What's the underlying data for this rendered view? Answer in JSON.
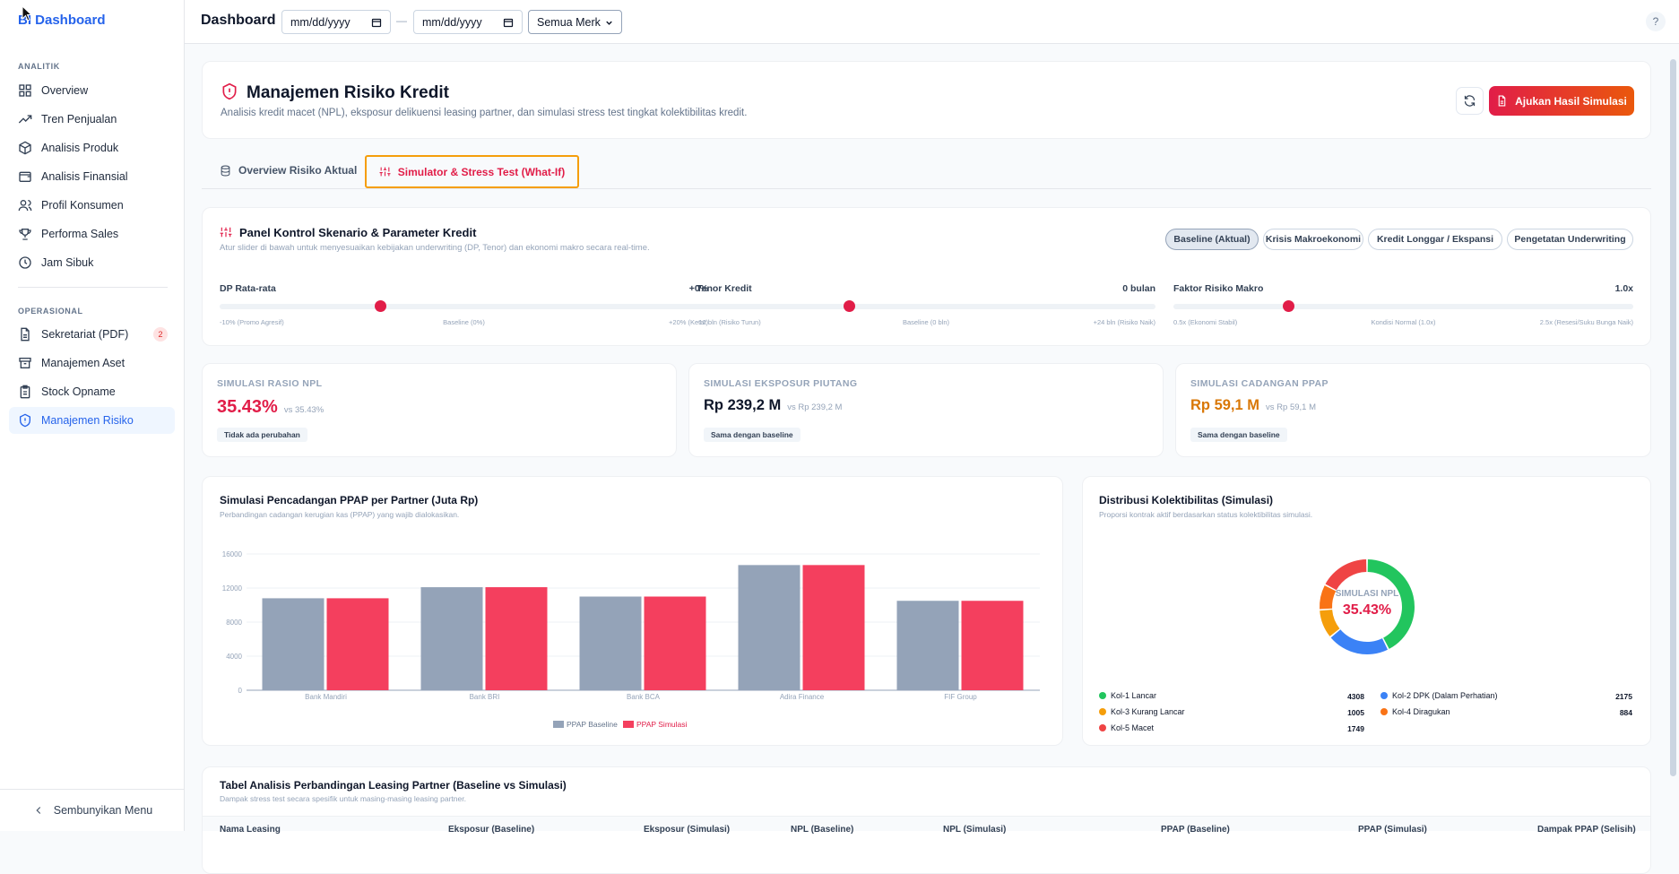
{
  "app": {
    "brand": "BI Dashboard"
  },
  "sidebar": {
    "analytics_label": "ANALITIK",
    "ops_label": "OPERASIONAL",
    "analytics": [
      {
        "label": "Overview",
        "icon": "grid-icon"
      },
      {
        "label": "Tren Penjualan",
        "icon": "trend-icon"
      },
      {
        "label": "Analisis Produk",
        "icon": "box-icon"
      },
      {
        "label": "Analisis Finansial",
        "icon": "wallet-icon"
      },
      {
        "label": "Profil Konsumen",
        "icon": "users-icon"
      },
      {
        "label": "Performa Sales",
        "icon": "trophy-icon"
      },
      {
        "label": "Jam Sibuk",
        "icon": "clock-icon"
      }
    ],
    "ops": [
      {
        "label": "Sekretariat (PDF)",
        "icon": "file-icon",
        "badge": "2"
      },
      {
        "label": "Manajemen Aset",
        "icon": "archive-icon"
      },
      {
        "label": "Stock Opname",
        "icon": "clipboard-icon"
      },
      {
        "label": "Manajemen Risiko",
        "icon": "shield-icon",
        "active": true
      }
    ],
    "collapse_label": "Sembunyikan Menu"
  },
  "topbar": {
    "title": "Dashboard",
    "date_from_placeholder": "mm/dd/yyyy",
    "date_to_placeholder": "mm/dd/yyyy",
    "separator": "—",
    "brand_select": "Semua Merk",
    "help": "?"
  },
  "header": {
    "title": "Manajemen Risiko Kredit",
    "subtitle": "Analisis kredit macet (NPL), eksposur delikuensi leasing partner, dan simulasi stress test tingkat kolektibilitas kredit.",
    "submit_label": "Ajukan Hasil Simulasi"
  },
  "tabs": [
    {
      "label": "Overview Risiko Aktual",
      "active": false
    },
    {
      "label": "Simulator & Stress Test (What-If)",
      "active": true
    }
  ],
  "panel": {
    "title": "Panel Kontrol Skenario & Parameter Kredit",
    "subtitle": "Atur slider di bawah untuk menyesuaikan kebijakan underwriting (DP, Tenor) dan ekonomi makro secara real-time.",
    "scenarios": [
      "Baseline (Aktual)",
      "Krisis Makroekonomi",
      "Kredit Longgar / Ekspansi",
      "Pengetatan Underwriting"
    ],
    "sliders": [
      {
        "label": "DP Rata-rata",
        "value": "+0%",
        "position": 0.33,
        "ticks": [
          "-10% (Promo Agresif)",
          "Baseline (0%)",
          "+20% (Ketat)"
        ]
      },
      {
        "label": "Tenor Kredit",
        "value": "0 bulan",
        "position": 0.333,
        "ticks": [
          "-12 bln (Risiko Turun)",
          "Baseline (0 bln)",
          "+24 bln (Risiko Naik)"
        ]
      },
      {
        "label": "Faktor Risiko Makro",
        "value": "1.0x",
        "position": 0.25,
        "ticks": [
          "0.5x (Ekonomi Stabil)",
          "Kondisi Normal (1.0x)",
          "2.5x (Resesi/Suku Bunga Naik)"
        ]
      }
    ]
  },
  "kpis": [
    {
      "label": "SIMULASI RASIO NPL",
      "value": "35.43%",
      "vs": "vs 35.43%",
      "pill": "Tidak ada perubahan",
      "color": "#e11d48"
    },
    {
      "label": "SIMULASI EKSPOSUR PIUTANG",
      "value": "Rp 239,2 M",
      "vs": "vs Rp 239,2 M",
      "pill": "Sama dengan baseline",
      "color": "#0f172a"
    },
    {
      "label": "SIMULASI CADANGAN PPAP",
      "value": "Rp 59,1 M",
      "vs": "vs Rp 59,1 M",
      "pill": "Sama dengan baseline",
      "color": "#d97706"
    }
  ],
  "bar_chart": {
    "title": "Simulasi Pencadangan PPAP per Partner (Juta Rp)",
    "subtitle": "Perbandingan cadangan kerugian kas (PPAP) yang wajib dialokasikan."
  },
  "chart_data": {
    "type": "bar",
    "categories": [
      "Bank Mandiri",
      "Bank BRI",
      "Bank BCA",
      "Adira Finance",
      "FIF Group"
    ],
    "series": [
      {
        "name": "PPAP Baseline",
        "values": [
          10800,
          12100,
          11000,
          14700,
          10500
        ],
        "color": "#94a3b8"
      },
      {
        "name": "PPAP Simulasi",
        "values": [
          10800,
          12100,
          11000,
          14700,
          10500
        ],
        "color": "#f43f5e"
      }
    ],
    "yticks": [
      0,
      4000,
      8000,
      12000,
      16000
    ],
    "ylim": [
      0,
      16000
    ]
  },
  "donut": {
    "title": "Distribusi Kolektibilitas (Simulasi)",
    "subtitle": "Proporsi kontrak aktif berdasarkan status kolektibilitas simulasi.",
    "center_label": "SIMULASI NPL",
    "center_value": "35.43%",
    "segments": [
      {
        "name": "Kol-1 Lancar",
        "value": 4308,
        "color": "#22c55e"
      },
      {
        "name": "Kol-2 DPK (Dalam Perhatian)",
        "value": 2175,
        "color": "#3b82f6"
      },
      {
        "name": "Kol-3 Kurang Lancar",
        "value": 1005,
        "color": "#f59e0b"
      },
      {
        "name": "Kol-4 Diragukan",
        "value": 884,
        "color": "#f97316"
      },
      {
        "name": "Kol-5 Macet",
        "value": 1749,
        "color": "#ef4444"
      }
    ]
  },
  "table": {
    "title": "Tabel Analisis Perbandingan Leasing Partner (Baseline vs Simulasi)",
    "subtitle": "Dampak stress test secara spesifik untuk masing-masing leasing partner.",
    "columns": [
      "Nama Leasing",
      "Eksposur (Baseline)",
      "Eksposur (Simulasi)",
      "NPL (Baseline)",
      "NPL (Simulasi)",
      "PPAP (Baseline)",
      "PPAP (Simulasi)",
      "Dampak PPAP (Selisih)"
    ]
  }
}
